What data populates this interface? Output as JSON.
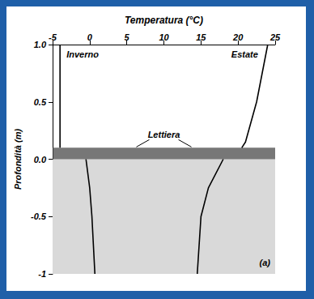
{
  "chart_data": {
    "type": "line",
    "x_label": "Temperatura (°C)",
    "y_label": "Profondità (m)",
    "xlim": [
      -5,
      25
    ],
    "xticks": [
      -5,
      0,
      5,
      10,
      15,
      20,
      25
    ],
    "ylim": [
      -1,
      1
    ],
    "yticks": [
      {
        "value": 1,
        "label": "1.0"
      },
      0.5,
      {
        "value": 0,
        "label": "0.0"
      },
      -0.5,
      -1
    ],
    "series": [
      {
        "name": "Inverno",
        "color": "#000000",
        "x": [
          -4,
          -4,
          null,
          -0.5,
          0,
          0.3,
          0.7
        ],
        "y": [
          1.0,
          0.1,
          null,
          0,
          -0.25,
          -0.5,
          -1
        ]
      },
      {
        "name": "Estate",
        "color": "#000000",
        "x": [
          24,
          22.5,
          21,
          20.5,
          null,
          18,
          16,
          15,
          14.5
        ],
        "y": [
          1.0,
          0.5,
          0.15,
          0.1,
          null,
          0,
          -0.25,
          -0.5,
          -1
        ]
      }
    ],
    "litter_layer": [
      0,
      0.1
    ],
    "annotations": [
      "Lettiera",
      "(a)"
    ]
  }
}
